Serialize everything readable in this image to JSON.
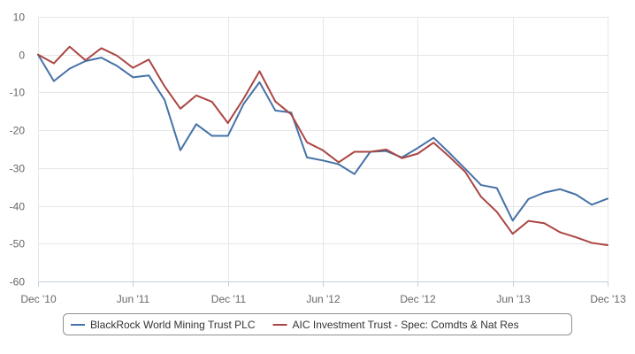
{
  "chart_data": {
    "type": "line",
    "title": "",
    "xlabel": "",
    "ylabel": "",
    "ylim": [
      -60,
      10
    ],
    "yticks": [
      "10",
      "0",
      "-10",
      "-20",
      "-30",
      "-40",
      "-50",
      "-60"
    ],
    "xlim": [
      "2010-12",
      "2013-12"
    ],
    "xticks": [
      {
        "label": "Dec '10",
        "date": "2010-12"
      },
      {
        "label": "Jun '11",
        "date": "2011-06"
      },
      {
        "label": "Dec '11",
        "date": "2011-12"
      },
      {
        "label": "Jun '12",
        "date": "2012-06"
      },
      {
        "label": "Dec '12",
        "date": "2012-12"
      },
      {
        "label": "Jun '13",
        "date": "2013-06"
      },
      {
        "label": "Dec '13",
        "date": "2013-12"
      }
    ],
    "grid": true,
    "legend_position": "bottom",
    "x": [
      "2010-12",
      "2011-01",
      "2011-02",
      "2011-03",
      "2011-04",
      "2011-05",
      "2011-06",
      "2011-07",
      "2011-08",
      "2011-09",
      "2011-10",
      "2011-11",
      "2011-12",
      "2012-01",
      "2012-02",
      "2012-03",
      "2012-04",
      "2012-05",
      "2012-06",
      "2012-07",
      "2012-08",
      "2012-09",
      "2012-10",
      "2012-11",
      "2012-12",
      "2013-01",
      "2013-02",
      "2013-03",
      "2013-04",
      "2013-05",
      "2013-06",
      "2013-07",
      "2013-08",
      "2013-09",
      "2013-10",
      "2013-11",
      "2013-12"
    ],
    "series": [
      {
        "name": "BlackRock World Mining Trust PLC",
        "color": "#4572A7",
        "values": [
          0,
          -7,
          -3.7,
          -1.7,
          -0.8,
          -3,
          -6,
          -5.5,
          -12,
          -25.3,
          -18.4,
          -21.5,
          -21.5,
          -13,
          -7.3,
          -14.8,
          -15.3,
          -27.2,
          -28,
          -29,
          -31.6,
          -25.7,
          -25.5,
          -27.2,
          -24.7,
          -22,
          -26,
          -30.2,
          -34.5,
          -35.3,
          -43.9,
          -38.2,
          -36.5,
          -35.6,
          -37,
          -39.7,
          -38.1
        ]
      },
      {
        "name": "AIC Investment Trust - Spec: Comdts & Nat Res",
        "color": "#AA4643",
        "values": [
          0,
          -2.3,
          2.1,
          -1.5,
          1.7,
          -0.3,
          -3.5,
          -1.3,
          -8.4,
          -14.3,
          -10.8,
          -12.5,
          -18.1,
          -11.6,
          -4.4,
          -12.4,
          -15.8,
          -23.2,
          -25.3,
          -28.5,
          -25.7,
          -25.7,
          -25.1,
          -27.4,
          -26.2,
          -23.3,
          -27,
          -31,
          -37.6,
          -41.6,
          -47.4,
          -44,
          -44.6,
          -47,
          -48.3,
          -49.8,
          -50.4
        ]
      }
    ]
  }
}
